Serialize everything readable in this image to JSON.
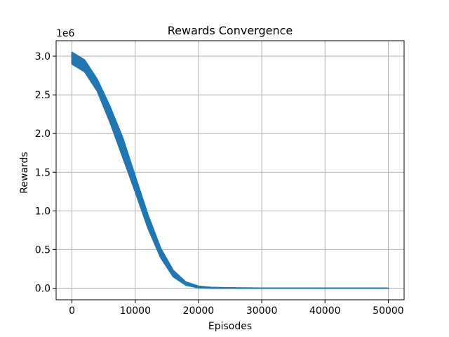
{
  "chart_data": {
    "type": "line",
    "title": "Rewards Convergence",
    "xlabel": "Episodes",
    "ylabel": "Rewards",
    "y_offset_label": "1e6",
    "xlim": [
      0,
      50000
    ],
    "ylim": [
      -0.15,
      3.2
    ],
    "grid": true,
    "x_ticks": [
      0,
      10000,
      20000,
      30000,
      40000,
      50000
    ],
    "x_tick_labels": [
      "0",
      "10000",
      "20000",
      "30000",
      "40000",
      "50000"
    ],
    "y_ticks": [
      0.0,
      0.5,
      1.0,
      1.5,
      2.0,
      2.5,
      3.0
    ],
    "y_tick_labels": [
      "0.0",
      "0.5",
      "1.0",
      "1.5",
      "2.0",
      "2.5",
      "3.0"
    ],
    "colors": {
      "series": "#1f77b4",
      "grid": "#b0b0b0",
      "axes": "#000000"
    },
    "series": [
      {
        "x": [
          0,
          2000,
          4000,
          6000,
          8000,
          10000,
          12000,
          14000,
          16000,
          18000,
          20000,
          22000,
          24000,
          30000,
          40000,
          50000
        ],
        "upper": [
          3.05,
          2.95,
          2.7,
          2.35,
          1.95,
          1.45,
          0.95,
          0.52,
          0.23,
          0.08,
          0.025,
          0.01,
          0.005,
          0.0,
          0.0,
          0.0
        ],
        "lower": [
          2.9,
          2.8,
          2.55,
          2.15,
          1.7,
          1.25,
          0.78,
          0.4,
          0.15,
          0.04,
          0.005,
          0.0,
          0.0,
          0.0,
          0.0,
          0.0
        ]
      }
    ]
  }
}
